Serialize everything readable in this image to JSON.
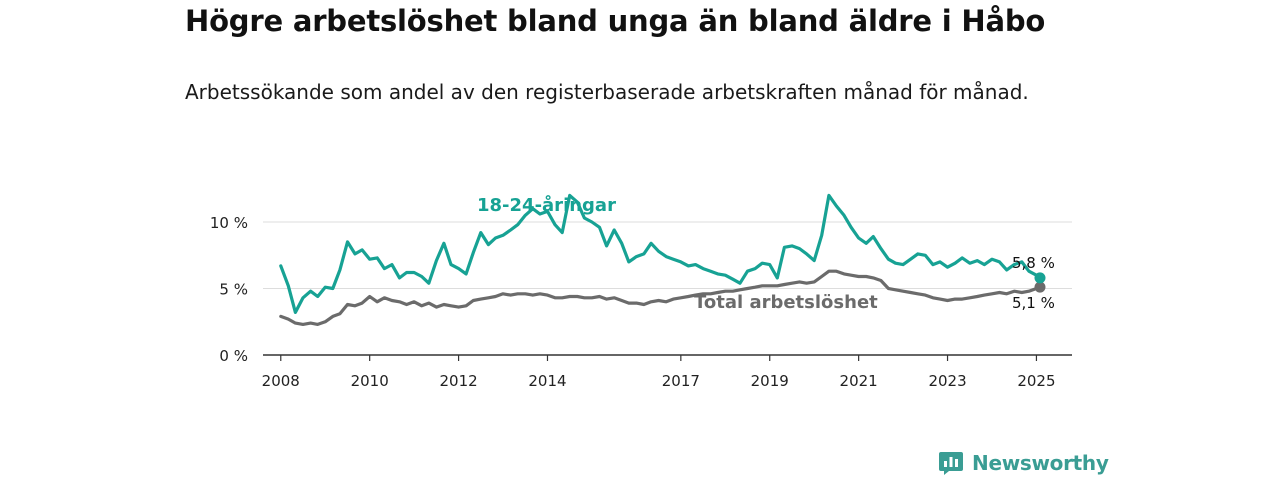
{
  "title": "Högre arbetslöshet bland unga än bland äldre i Håbo",
  "subtitle": "Arbetssökande som andel av den registerbaserade arbetskraften månad för månad.",
  "brand": {
    "name": "Newsworthy",
    "logo_icon": "bar-chart-speech-bubble-icon",
    "color": "#3a9d94"
  },
  "chart_data": {
    "type": "line",
    "xlabel": "",
    "ylabel": "",
    "xlim": [
      2007.6,
      2025.8
    ],
    "ylim": [
      0,
      10
    ],
    "x_ticks": [
      {
        "value": 2008,
        "label": "2008"
      },
      {
        "value": 2010,
        "label": "2010"
      },
      {
        "value": 2012,
        "label": "2012"
      },
      {
        "value": 2014,
        "label": "2014"
      },
      {
        "value": 2017,
        "label": "2017"
      },
      {
        "value": 2019,
        "label": "2019"
      },
      {
        "value": 2021,
        "label": "2021"
      },
      {
        "value": 2023,
        "label": "2023"
      },
      {
        "value": 2025,
        "label": "2025"
      }
    ],
    "y_ticks": [
      {
        "value": 0,
        "label": "0 %"
      },
      {
        "value": 5,
        "label": "5 %"
      },
      {
        "value": 10,
        "label": "10 %"
      }
    ],
    "grid": "horizontal",
    "legend": "labels on lines",
    "series": [
      {
        "name": "18-24-åringar",
        "color": "#17a294",
        "end_label": "5,8 %",
        "x": [
          2008.0,
          2008.17,
          2008.33,
          2008.5,
          2008.67,
          2008.83,
          2009.0,
          2009.17,
          2009.33,
          2009.5,
          2009.67,
          2009.83,
          2010.0,
          2010.17,
          2010.33,
          2010.5,
          2010.67,
          2010.83,
          2011.0,
          2011.17,
          2011.33,
          2011.5,
          2011.67,
          2011.83,
          2012.0,
          2012.17,
          2012.33,
          2012.5,
          2012.67,
          2012.83,
          2013.0,
          2013.17,
          2013.33,
          2013.5,
          2013.67,
          2013.83,
          2014.0,
          2014.17,
          2014.33,
          2014.5,
          2014.67,
          2014.83,
          2015.0,
          2015.17,
          2015.33,
          2015.5,
          2015.67,
          2015.83,
          2016.0,
          2016.17,
          2016.33,
          2016.5,
          2016.67,
          2016.83,
          2017.0,
          2017.17,
          2017.33,
          2017.5,
          2017.67,
          2017.83,
          2018.0,
          2018.17,
          2018.33,
          2018.5,
          2018.67,
          2018.83,
          2019.0,
          2019.17,
          2019.33,
          2019.5,
          2019.67,
          2019.83,
          2020.0,
          2020.17,
          2020.33,
          2020.5,
          2020.67,
          2020.83,
          2021.0,
          2021.17,
          2021.33,
          2021.5,
          2021.67,
          2021.83,
          2022.0,
          2022.17,
          2022.33,
          2022.5,
          2022.67,
          2022.83,
          2023.0,
          2023.17,
          2023.33,
          2023.5,
          2023.67,
          2023.83,
          2024.0,
          2024.17,
          2024.33,
          2024.5,
          2024.67,
          2024.83,
          2025.0,
          2025.08
        ],
        "y": [
          6.7,
          5.2,
          3.2,
          4.3,
          4.8,
          4.4,
          5.1,
          5.0,
          6.4,
          8.5,
          7.6,
          7.9,
          7.2,
          7.3,
          6.5,
          6.8,
          5.8,
          6.2,
          6.2,
          5.9,
          5.4,
          7.1,
          8.4,
          6.8,
          6.5,
          6.1,
          7.7,
          9.2,
          8.3,
          8.8,
          9.0,
          9.4,
          9.8,
          10.5,
          11.0,
          10.6,
          10.8,
          9.8,
          9.2,
          12.0,
          11.5,
          10.3,
          10.0,
          9.6,
          8.2,
          9.4,
          8.4,
          7.0,
          7.4,
          7.6,
          8.4,
          7.8,
          7.4,
          7.2,
          7.0,
          6.7,
          6.8,
          6.5,
          6.3,
          6.1,
          6.0,
          5.7,
          5.4,
          6.3,
          6.5,
          6.9,
          6.8,
          5.8,
          8.1,
          8.2,
          8.0,
          7.6,
          7.1,
          9.0,
          12.0,
          11.2,
          10.5,
          9.6,
          8.8,
          8.4,
          8.9,
          8.0,
          7.2,
          6.9,
          6.8,
          7.2,
          7.6,
          7.5,
          6.8,
          7.0,
          6.6,
          6.9,
          7.3,
          6.9,
          7.1,
          6.8,
          7.2,
          7.0,
          6.4,
          6.8,
          7.0,
          6.3,
          6.0,
          5.8
        ]
      },
      {
        "name": "Total arbetslöshet",
        "color": "#6b6b6b",
        "end_label": "5,1 %",
        "x": [
          2008.0,
          2008.17,
          2008.33,
          2008.5,
          2008.67,
          2008.83,
          2009.0,
          2009.17,
          2009.33,
          2009.5,
          2009.67,
          2009.83,
          2010.0,
          2010.17,
          2010.33,
          2010.5,
          2010.67,
          2010.83,
          2011.0,
          2011.17,
          2011.33,
          2011.5,
          2011.67,
          2011.83,
          2012.0,
          2012.17,
          2012.33,
          2012.5,
          2012.67,
          2012.83,
          2013.0,
          2013.17,
          2013.33,
          2013.5,
          2013.67,
          2013.83,
          2014.0,
          2014.17,
          2014.33,
          2014.5,
          2014.67,
          2014.83,
          2015.0,
          2015.17,
          2015.33,
          2015.5,
          2015.67,
          2015.83,
          2016.0,
          2016.17,
          2016.33,
          2016.5,
          2016.67,
          2016.83,
          2017.0,
          2017.17,
          2017.33,
          2017.5,
          2017.67,
          2017.83,
          2018.0,
          2018.17,
          2018.33,
          2018.5,
          2018.67,
          2018.83,
          2019.0,
          2019.17,
          2019.33,
          2019.5,
          2019.67,
          2019.83,
          2020.0,
          2020.17,
          2020.33,
          2020.5,
          2020.67,
          2020.83,
          2021.0,
          2021.17,
          2021.33,
          2021.5,
          2021.67,
          2021.83,
          2022.0,
          2022.17,
          2022.33,
          2022.5,
          2022.67,
          2022.83,
          2023.0,
          2023.17,
          2023.33,
          2023.5,
          2023.67,
          2023.83,
          2024.0,
          2024.17,
          2024.33,
          2024.5,
          2024.67,
          2024.83,
          2025.0,
          2025.08
        ],
        "y": [
          2.9,
          2.7,
          2.4,
          2.3,
          2.4,
          2.3,
          2.5,
          2.9,
          3.1,
          3.8,
          3.7,
          3.9,
          4.4,
          4.0,
          4.3,
          4.1,
          4.0,
          3.8,
          4.0,
          3.7,
          3.9,
          3.6,
          3.8,
          3.7,
          3.6,
          3.7,
          4.1,
          4.2,
          4.3,
          4.4,
          4.6,
          4.5,
          4.6,
          4.6,
          4.5,
          4.6,
          4.5,
          4.3,
          4.3,
          4.4,
          4.4,
          4.3,
          4.3,
          4.4,
          4.2,
          4.3,
          4.1,
          3.9,
          3.9,
          3.8,
          4.0,
          4.1,
          4.0,
          4.2,
          4.3,
          4.4,
          4.5,
          4.6,
          4.6,
          4.7,
          4.8,
          4.8,
          4.9,
          5.0,
          5.1,
          5.2,
          5.2,
          5.2,
          5.3,
          5.4,
          5.5,
          5.4,
          5.5,
          5.9,
          6.3,
          6.3,
          6.1,
          6.0,
          5.9,
          5.9,
          5.8,
          5.6,
          5.0,
          4.9,
          4.8,
          4.7,
          4.6,
          4.5,
          4.3,
          4.2,
          4.1,
          4.2,
          4.2,
          4.3,
          4.4,
          4.5,
          4.6,
          4.7,
          4.6,
          4.8,
          4.7,
          4.8,
          5.0,
          5.1
        ]
      }
    ]
  }
}
